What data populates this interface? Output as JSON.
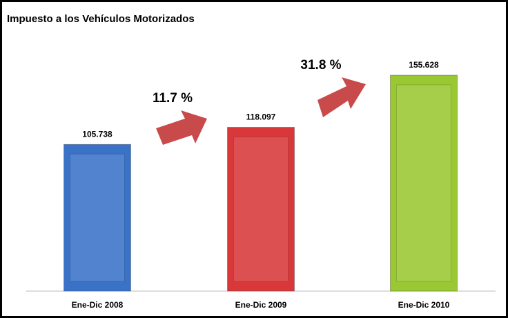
{
  "chart_data": {
    "type": "bar",
    "title": "Impuesto a los Vehículos Motorizados",
    "categories": [
      "Ene-Dic 2008",
      "Ene-Dic 2009",
      "Ene-Dic 2010"
    ],
    "values": [
      105.738,
      118.097,
      155.628
    ],
    "colors": [
      "#3a72c8",
      "#d8383a",
      "#9ac833"
    ],
    "annotations": [
      {
        "text": "11.7 %"
      },
      {
        "text": "31.8 %"
      }
    ]
  }
}
